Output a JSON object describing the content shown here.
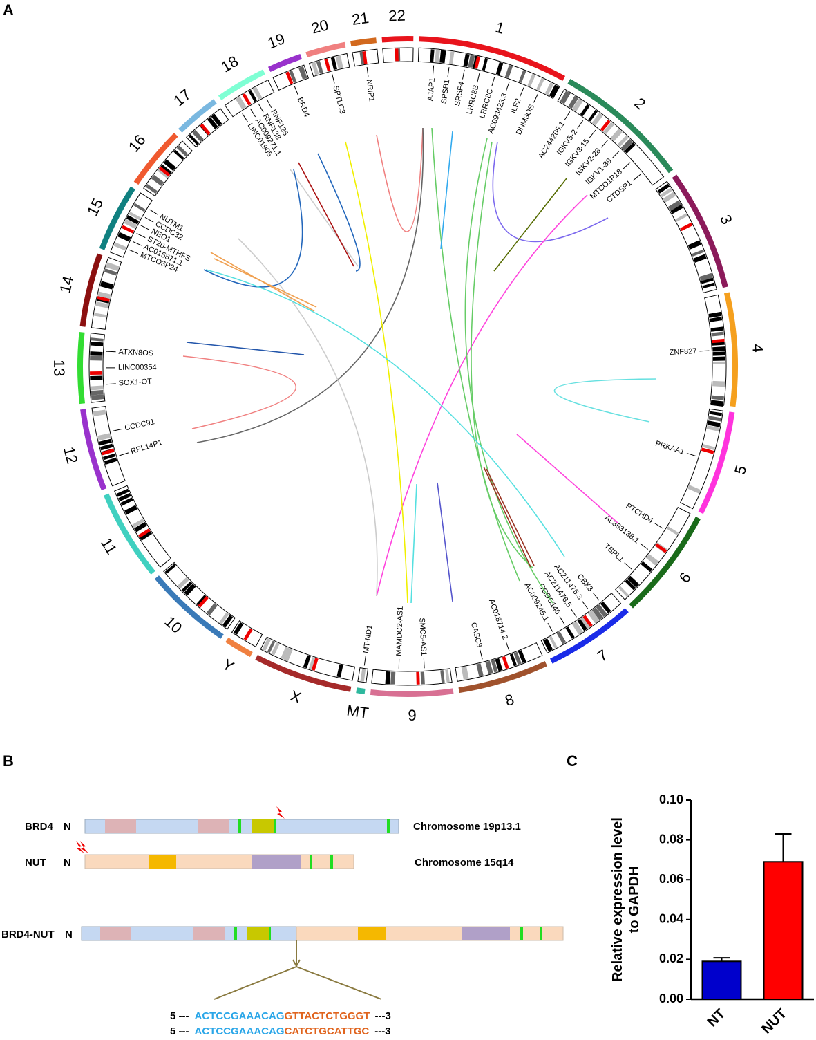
{
  "panel_labels": [
    "A",
    "B",
    "C"
  ],
  "circos": {
    "chromosomes": [
      {
        "label": "1",
        "color": "#e8141c",
        "genes": [
          "AJAP1",
          "SPSB1",
          "SRSF4",
          "LRRC8B",
          "LRRC8C",
          "AC093423.3",
          "ILF2",
          "DNM3OS"
        ]
      },
      {
        "label": "2",
        "color": "#2a8a5a",
        "genes": [
          "AC244205.1",
          "IGKV5-2",
          "IGKV3-15",
          "IGKV2-28",
          "IGKV1-39",
          "MTCO1P18",
          "CTDSP1"
        ]
      },
      {
        "label": "3",
        "color": "#8b1a5a",
        "genes": []
      },
      {
        "label": "4",
        "color": "#f5a01e",
        "genes": [
          "ZNF827"
        ]
      },
      {
        "label": "5",
        "color": "#ff33dd",
        "genes": [
          "PRKAA1"
        ]
      },
      {
        "label": "6",
        "color": "#1a6b1a",
        "genes": [
          "PTCHD4",
          "AL353138.1",
          "TBPL1"
        ]
      },
      {
        "label": "7",
        "color": "#1a2be8",
        "genes": [
          "CBX3",
          "AC211476.3",
          "AC211476.5",
          "CCDC146",
          "AC009245.1"
        ]
      },
      {
        "label": "8",
        "color": "#a0522d",
        "genes": [
          "AC018714.2",
          "CASC3"
        ]
      },
      {
        "label": "9",
        "color": "#d87093",
        "genes": [
          "SMC5-AS1",
          "MAMDC2-AS1"
        ]
      },
      {
        "label": "MT",
        "color": "#2eb89e",
        "genes": [
          "MT-ND1"
        ]
      },
      {
        "label": "X",
        "color": "#a52a2a",
        "genes": []
      },
      {
        "label": "Y",
        "color": "#f08040",
        "genes": []
      },
      {
        "label": "10",
        "color": "#3a7ab8",
        "genes": []
      },
      {
        "label": "11",
        "color": "#40d0c0",
        "genes": []
      },
      {
        "label": "12",
        "color": "#9932cc",
        "genes": [
          "RPL14P1",
          "CCDC91"
        ]
      },
      {
        "label": "13",
        "color": "#33dd33",
        "genes": [
          "SOX1-OT",
          "LINC00354",
          "ATXN8OS"
        ]
      },
      {
        "label": "14",
        "color": "#8b1010",
        "genes": []
      },
      {
        "label": "15",
        "color": "#108080",
        "genes": [
          "MTCO3P24",
          "AC015871.1",
          "ST20-MTHFS",
          "NEO1",
          "CCDC32",
          "NUTM1"
        ]
      },
      {
        "label": "16",
        "color": "#f05a30",
        "genes": []
      },
      {
        "label": "17",
        "color": "#7ab8e0",
        "genes": []
      },
      {
        "label": "18",
        "color": "#7fffd4",
        "genes": [
          "LINC01905",
          "AC009271.1",
          "RNF138",
          "RNF125"
        ]
      },
      {
        "label": "19",
        "color": "#9932cc",
        "genes": [
          "BRD4"
        ]
      },
      {
        "label": "20",
        "color": "#f08080",
        "genes": [
          "SPTLC3"
        ]
      },
      {
        "label": "21",
        "color": "#d2691e",
        "genes": [
          "NRIP1"
        ]
      },
      {
        "label": "22",
        "color": "#e8141c",
        "genes": []
      }
    ]
  },
  "fusion": {
    "genes": [
      {
        "name": "BRD4",
        "terminus": "N",
        "location": "Chromosome 19p13.1"
      },
      {
        "name": "NUT",
        "terminus": "N",
        "location": "Chromosome 15q14"
      }
    ],
    "fusion_gene": {
      "name": "BRD4-NUT",
      "terminus": "N"
    },
    "sequences": [
      {
        "prefix": "5 ---",
        "brd4": "ACTCCGAAACAG",
        "nut": "GTTACTCTGGGT",
        "suffix": "---3"
      },
      {
        "prefix": "5 ---",
        "brd4": "ACTCCGAAACAG",
        "nut": "CATCTGCATTGC",
        "suffix": "---3"
      }
    ]
  },
  "chart_data": {
    "type": "bar",
    "ylabel": [
      "Relative expression level",
      "to GAPDH"
    ],
    "categories": [
      "NT",
      "NUT"
    ],
    "values": [
      0.019,
      0.069
    ],
    "errors": [
      0.0018,
      0.014
    ],
    "colors": [
      "#0000cc",
      "#ff0000"
    ],
    "ylim": [
      0,
      0.1
    ],
    "yticks": [
      {
        "value": 0,
        "label": "0.00"
      },
      {
        "value": 0.02,
        "label": "0.02"
      },
      {
        "value": 0.04,
        "label": "0.04"
      },
      {
        "value": 0.06,
        "label": "0.06"
      },
      {
        "value": 0.08,
        "label": "0.08"
      },
      {
        "value": 0.1,
        "label": "0.10"
      }
    ]
  }
}
